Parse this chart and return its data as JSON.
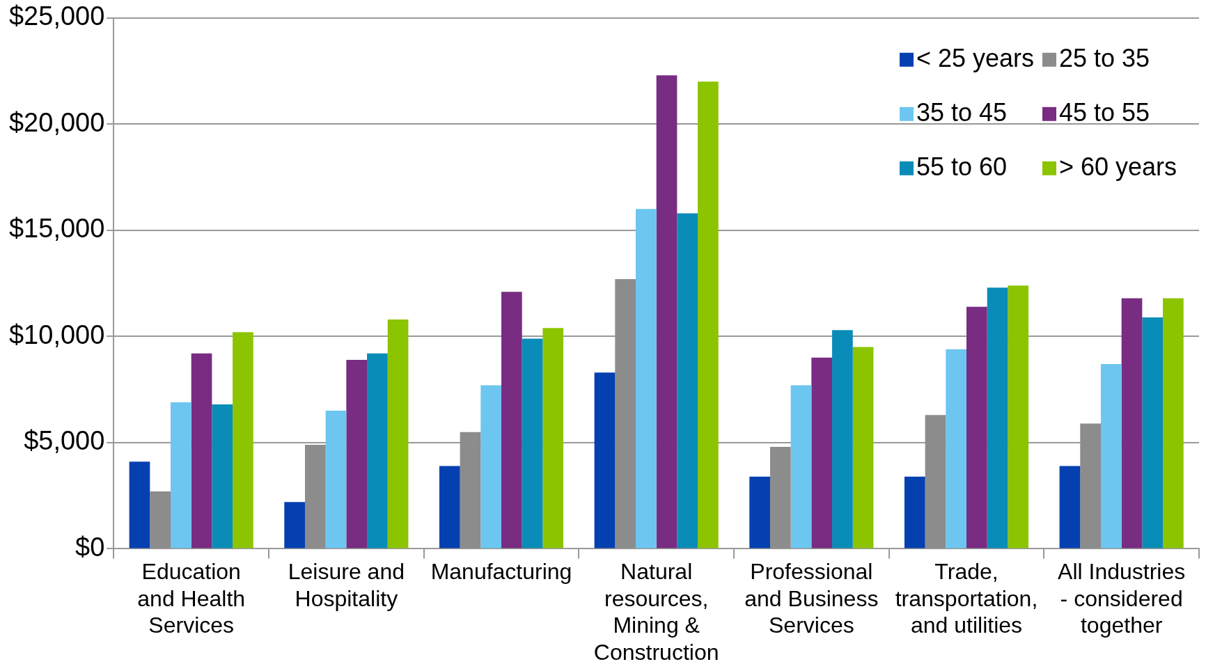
{
  "chart_data": {
    "type": "bar",
    "categories": [
      "Education and Health Services",
      "Leisure and Hospitality",
      "Manufacturing",
      "Natural resources, Mining & Construction",
      "Professional and Business Services",
      "Trade, transportation, and utilities",
      "All Industries - considered together"
    ],
    "series": [
      {
        "name": "< 25 years",
        "color": "#0540b0",
        "values": [
          4100,
          2200,
          3900,
          8300,
          3400,
          3400,
          3900
        ]
      },
      {
        "name": "25 to 35",
        "color": "#8c8c8c",
        "values": [
          2700,
          4900,
          5500,
          12700,
          4800,
          6300,
          5900
        ]
      },
      {
        "name": "35 to 45",
        "color": "#6cc6f0",
        "values": [
          6900,
          6500,
          7700,
          16000,
          7700,
          9400,
          8700
        ]
      },
      {
        "name": "45 to 55",
        "color": "#782c82",
        "values": [
          9200,
          8900,
          12100,
          22300,
          9000,
          11400,
          11800
        ]
      },
      {
        "name": "55 to 60",
        "color": "#0a8cb8",
        "values": [
          6800,
          9200,
          9900,
          15800,
          10300,
          12300,
          10900
        ]
      },
      {
        "name": "> 60 years",
        "color": "#8cc400",
        "values": [
          10200,
          10800,
          10400,
          22000,
          9500,
          12400,
          11800
        ]
      }
    ],
    "ylim": [
      0,
      25000
    ],
    "yticks": [
      {
        "value": 0,
        "label": "$0"
      },
      {
        "value": 5000,
        "label": "$5,000"
      },
      {
        "value": 10000,
        "label": "$10,000"
      },
      {
        "value": 15000,
        "label": "$15,000"
      },
      {
        "value": 20000,
        "label": "$20,000"
      },
      {
        "value": 25000,
        "label": "$25,000"
      }
    ],
    "grid": "y",
    "legend": "top right"
  }
}
